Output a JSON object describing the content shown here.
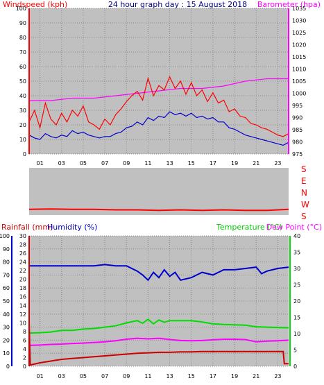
{
  "colors": {
    "bg": "#ffffff",
    "panel": "#c0c0c0",
    "windspeed": "#ff0000",
    "windavg": "#0000cc",
    "barometer": "#ff00ff",
    "winddir": "#ff0000",
    "rain": "#cc0000",
    "humidity": "#0000cc",
    "temperature": "#00dd00",
    "dewpoint": "#ff00ff",
    "cyan": "#00cccc",
    "title": "#000080"
  },
  "chart_data": [
    {
      "type": "line",
      "panel": "wind-barometer",
      "title": "24 hour graph day : 15 August 2018",
      "ylabel_left": "Windspeed (kph)",
      "ylabel_right": "Barometer (hpa)",
      "x_ticks": [
        "01",
        "03",
        "05",
        "07",
        "09",
        "11",
        "13",
        "15",
        "17",
        "19",
        "21",
        "23"
      ],
      "y_left_ticks": [
        "0",
        "10",
        "20",
        "30",
        "40",
        "50",
        "60",
        "70",
        "80",
        "90",
        "100"
      ],
      "y_right_ticks": [
        "975",
        "980",
        "985",
        "990",
        "995",
        "1000",
        "1005",
        "1010",
        "1015",
        "1020",
        "1025",
        "1030",
        "1035"
      ],
      "ylim_left": [
        0,
        100
      ],
      "ylim_right": [
        975,
        1035
      ],
      "grid": true,
      "series": [
        {
          "key": "gust",
          "hours": [
            0,
            0.5,
            1,
            1.5,
            2,
            2.5,
            3,
            3.5,
            4,
            4.5,
            5,
            5.5,
            6,
            6.5,
            7,
            7.5,
            8,
            8.5,
            9,
            9.5,
            10,
            10.5,
            11,
            11.5,
            12,
            12.5,
            13,
            13.5,
            14,
            14.5,
            15,
            15.5,
            16,
            16.5,
            17,
            17.5,
            18,
            18.5,
            19,
            19.5,
            20,
            20.5,
            21,
            21.5,
            22,
            22.5,
            23,
            23.5,
            24
          ],
          "values": [
            22,
            30,
            18,
            35,
            24,
            20,
            28,
            22,
            30,
            26,
            33,
            22,
            20,
            17,
            24,
            20,
            27,
            31,
            36,
            40,
            43,
            37,
            52,
            40,
            47,
            44,
            53,
            45,
            50,
            41,
            49,
            40,
            44,
            36,
            42,
            35,
            37,
            29,
            31,
            26,
            25,
            21,
            20,
            18,
            17,
            15,
            13,
            12,
            14
          ]
        },
        {
          "key": "average",
          "hours": [
            0,
            0.5,
            1,
            1.5,
            2,
            2.5,
            3,
            3.5,
            4,
            4.5,
            5,
            5.5,
            6,
            6.5,
            7,
            7.5,
            8,
            8.5,
            9,
            9.5,
            10,
            10.5,
            11,
            11.5,
            12,
            12.5,
            13,
            13.5,
            14,
            14.5,
            15,
            15.5,
            16,
            16.5,
            17,
            17.5,
            18,
            18.5,
            19,
            19.5,
            20,
            20.5,
            21,
            21.5,
            22,
            22.5,
            23,
            23.5,
            24
          ],
          "values": [
            13,
            11,
            10,
            14,
            12,
            11,
            13,
            12,
            16,
            14,
            15,
            13,
            12,
            11,
            12,
            12,
            14,
            15,
            18,
            19,
            22,
            20,
            25,
            23,
            26,
            25,
            29,
            27,
            28,
            26,
            28,
            25,
            26,
            24,
            25,
            22,
            22,
            18,
            17,
            15,
            13,
            12,
            11,
            10,
            9,
            8,
            7,
            6,
            8
          ]
        },
        {
          "key": "barometer",
          "hours": [
            0,
            2,
            4,
            6,
            8,
            10,
            12,
            14,
            16,
            18,
            20,
            22,
            24
          ],
          "values": [
            997,
            997,
            998,
            998,
            999,
            1000,
            1001,
            1002,
            1002,
            1003,
            1005,
            1006,
            1006
          ]
        }
      ]
    },
    {
      "type": "line",
      "panel": "wind-direction",
      "y_labels": [
        "S",
        "E",
        "N",
        "W",
        "S"
      ],
      "series": [
        {
          "key": "direction",
          "hours": [
            0,
            2,
            4,
            6,
            8,
            10,
            12,
            14,
            16,
            18,
            20,
            22,
            24
          ],
          "values": [
            0.88,
            0.87,
            0.88,
            0.88,
            0.89,
            0.89,
            0.9,
            0.89,
            0.9,
            0.89,
            0.9,
            0.9,
            0.88
          ]
        }
      ]
    },
    {
      "type": "line",
      "panel": "rain-humidity-temperature",
      "ylabel_rain": "Rainfall (mm)",
      "ylabel_humidity": "Humidity (%)",
      "ylabel_temperature": "Temperature (°C)",
      "ylabel_dewpoint": "Dew Point (°C)",
      "x_ticks": [
        "01",
        "03",
        "05",
        "07",
        "09",
        "11",
        "13",
        "15",
        "17",
        "19",
        "21",
        "23"
      ],
      "y_humidity_ticks": [
        "0",
        "10",
        "20",
        "30",
        "40",
        "50",
        "60",
        "70",
        "80",
        "90",
        "100"
      ],
      "y_rain_ticks": [
        "0",
        "2",
        "4",
        "6",
        "8",
        "10",
        "12",
        "14",
        "16",
        "18",
        "20",
        "22",
        "24",
        "26",
        "28",
        "30"
      ],
      "y_temp_ticks": [
        "0",
        "5",
        "10",
        "15",
        "20",
        "25",
        "30",
        "35",
        "40"
      ],
      "ylim_humidity": [
        0,
        100
      ],
      "ylim_rain": [
        0,
        30
      ],
      "ylim_temp": [
        0,
        40
      ],
      "series": [
        {
          "key": "humidity",
          "hours": [
            0,
            1,
            2,
            3,
            4,
            5,
            6,
            7,
            8,
            9,
            10,
            10.5,
            11,
            11.5,
            12,
            12.5,
            13,
            13.5,
            14,
            15,
            16,
            17,
            18,
            19,
            20,
            21,
            21.5,
            22,
            23,
            24
          ],
          "values": [
            77,
            77,
            77,
            77,
            77,
            77,
            77,
            78,
            77,
            77,
            73,
            70,
            66,
            72,
            68,
            74,
            69,
            72,
            66,
            68,
            72,
            70,
            74,
            74,
            75,
            76,
            71,
            73,
            75,
            76
          ]
        },
        {
          "key": "temperature",
          "hours": [
            0,
            1,
            2,
            3,
            4,
            5,
            6,
            7,
            8,
            9,
            10,
            10.5,
            11,
            11.5,
            12,
            12.5,
            13,
            14,
            15,
            16,
            17,
            18,
            19,
            20,
            21,
            22,
            23,
            24
          ],
          "values": [
            10.2,
            10.3,
            10.5,
            11,
            11,
            11.4,
            11.6,
            12,
            12.4,
            13.3,
            14,
            13.2,
            14.4,
            13,
            14.2,
            13.5,
            14,
            14,
            14,
            13.6,
            13,
            12.8,
            12.7,
            12.6,
            12.1,
            12,
            11.9,
            11.8
          ]
        },
        {
          "key": "dewpoint",
          "hours": [
            0,
            1,
            2,
            3,
            4,
            5,
            6,
            7,
            8,
            9,
            10,
            11,
            12,
            13,
            14,
            15,
            16,
            17,
            18,
            19,
            20,
            21,
            22,
            23,
            24
          ],
          "values": [
            6.4,
            6.5,
            6.7,
            6.8,
            7,
            7.1,
            7.3,
            7.5,
            7.8,
            8.3,
            8.6,
            8.4,
            8.6,
            8.2,
            7.9,
            7.8,
            7.9,
            8.1,
            8.3,
            8.3,
            8.2,
            7.5,
            7.7,
            7.8,
            8
          ]
        },
        {
          "key": "rainfall",
          "hours": [
            0,
            0.1,
            1,
            2,
            3,
            4,
            5,
            6,
            7,
            8,
            9,
            10,
            11,
            12,
            13,
            14,
            15,
            16,
            17,
            18,
            19,
            20,
            21,
            22,
            23,
            23.5,
            23.6,
            24
          ],
          "values": [
            10,
            0.3,
            0.8,
            1.2,
            1.6,
            1.8,
            2,
            2.2,
            2.4,
            2.6,
            2.8,
            3,
            3.1,
            3.2,
            3.2,
            3.3,
            3.3,
            3.4,
            3.4,
            3.4,
            3.4,
            3.4,
            3.4,
            3.4,
            3.4,
            3.4,
            0.6,
            0.6
          ]
        }
      ]
    }
  ]
}
